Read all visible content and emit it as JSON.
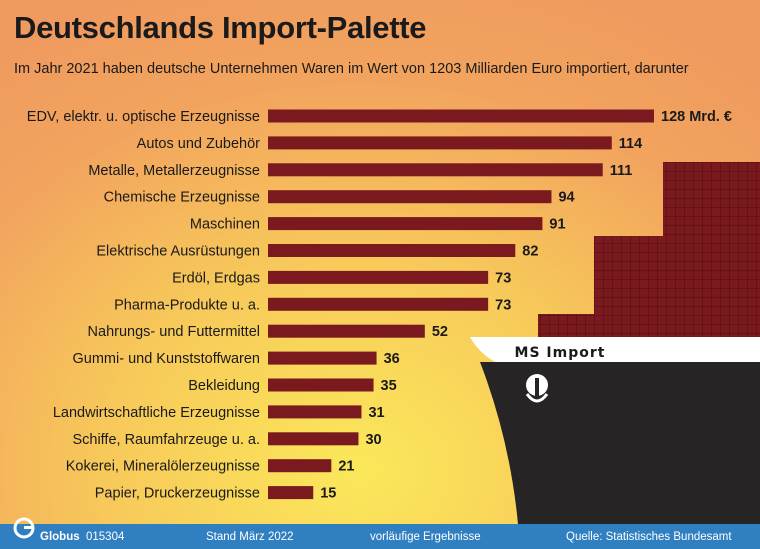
{
  "title": "Deutschlands Import-Palette",
  "subtitle": "Im Jahr 2021 haben deutsche Unternehmen Waren im Wert von 1203 Milliarden Euro importiert, darunter",
  "ship": {
    "name": "MS Import"
  },
  "colors": {
    "bar": "#7a1a1e",
    "container": "#7a1a1e",
    "hull": "#262424",
    "footer": "#2f7fc1"
  },
  "chart_data": {
    "type": "bar",
    "orientation": "horizontal",
    "title": "Deutschlands Import-Palette",
    "subtitle": "Im Jahr 2021 haben deutsche Unternehmen Waren im Wert von 1203 Milliarden Euro importiert, darunter",
    "unit": "Mrd. €",
    "categories": [
      "EDV, elektr. u. optische Erzeugnisse",
      "Autos und Zubehör",
      "Metalle, Metallerzeugnisse",
      "Chemische Erzeugnisse",
      "Maschinen",
      "Elektrische Ausrüstungen",
      "Erdöl, Erdgas",
      "Pharma-Produkte u. a.",
      "Nahrungs- und Futtermittel",
      "Gummi- und Kunststoffwaren",
      "Bekleidung",
      "Landwirtschaftliche Erzeugnisse",
      "Schiffe, Raumfahrzeuge u. a.",
      "Kokerei, Mineralölerzeugnisse",
      "Papier, Druckerzeugnisse"
    ],
    "values": [
      128,
      114,
      111,
      94,
      91,
      82,
      73,
      73,
      52,
      36,
      35,
      31,
      30,
      21,
      15
    ],
    "value_labels": [
      "128 Mrd. €",
      "114",
      "111",
      "94",
      "91",
      "82",
      "73",
      "73",
      "52",
      "36",
      "35",
      "31",
      "30",
      "21",
      "15"
    ],
    "xlim": [
      0,
      128
    ],
    "grid": false,
    "legend": "none"
  },
  "footer": {
    "logo": "Globus",
    "id": "015304",
    "date": "Stand März 2022",
    "note": "vorläufige Ergebnisse",
    "source": "Quelle: Statistisches Bundesamt"
  }
}
